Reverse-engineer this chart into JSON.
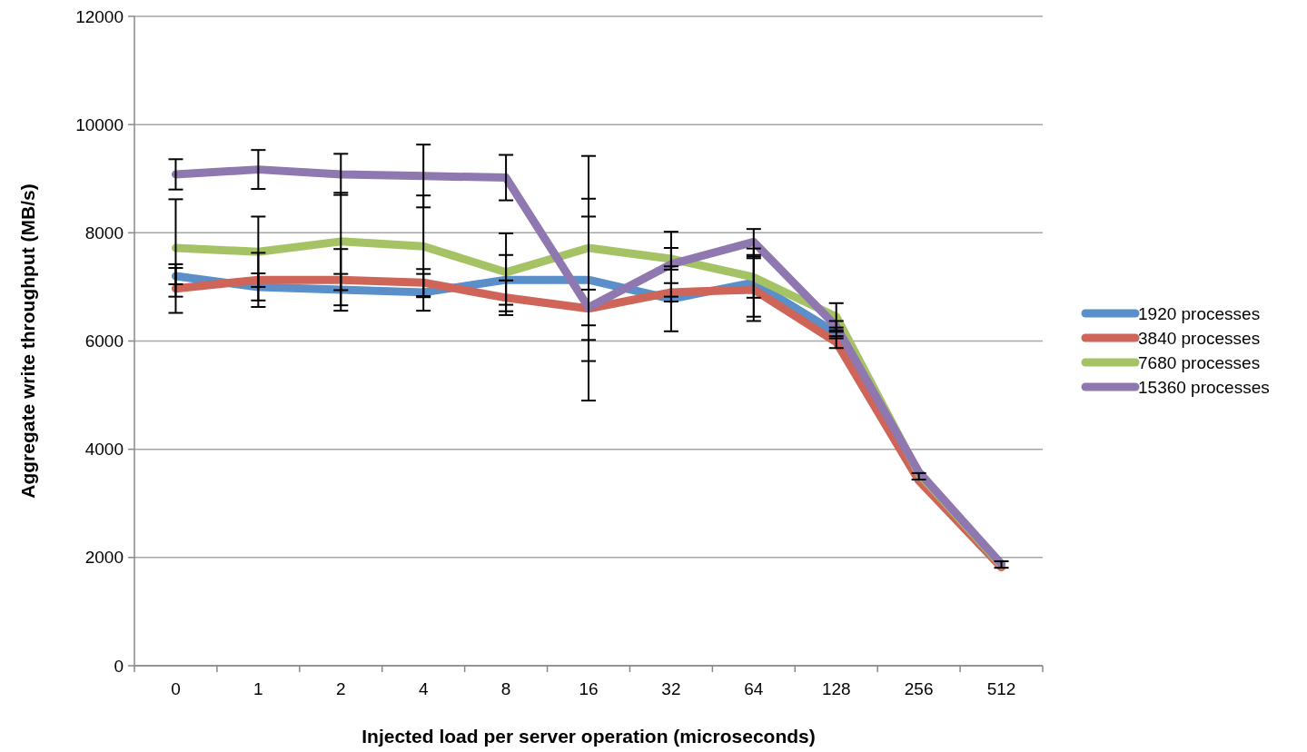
{
  "chart_data": {
    "type": "line",
    "xlabel": "Injected load per server operation (microseconds)",
    "ylabel": "Aggregate write throughput (MB/s)",
    "categories": [
      "0",
      "1",
      "2",
      "4",
      "8",
      "16",
      "32",
      "64",
      "128",
      "256",
      "512"
    ],
    "ylim": [
      0,
      12000
    ],
    "yticks": [
      0,
      2000,
      4000,
      6000,
      8000,
      10000,
      12000
    ],
    "grid": "y",
    "legend": "right",
    "marker": "none",
    "line_style": "solid",
    "series": [
      {
        "name": "1920 processes",
        "color": "#5b8fc9",
        "values": [
          7200,
          7000,
          6950,
          6900,
          7130,
          7130,
          6780,
          7080,
          6150,
          3500,
          1870
        ],
        "errors": [
          150,
          250,
          290,
          340,
          460,
          1500,
          600,
          630,
          100,
          60,
          60
        ]
      },
      {
        "name": "3840 processes",
        "color": "#cf6559",
        "values": [
          6970,
          7130,
          7130,
          7080,
          6800,
          6600,
          6900,
          6950,
          5980,
          3420,
          1820
        ],
        "errors": [
          450,
          500,
          570,
          250,
          320,
          1700,
          170,
          580,
          110,
          null,
          null
        ]
      },
      {
        "name": "7680 processes",
        "color": "#a5c364",
        "values": [
          7720,
          7650,
          7840,
          7750,
          7270,
          7720,
          7520,
          7180,
          6450,
          3550,
          1860
        ],
        "errors": [
          900,
          650,
          900,
          940,
          720,
          1700,
          200,
          380,
          250,
          null,
          null
        ]
      },
      {
        "name": "15360 processes",
        "color": "#8f78b0",
        "values": [
          9080,
          9170,
          9080,
          9050,
          9020,
          6620,
          7420,
          7830,
          6270,
          3580,
          1880
        ],
        "errors": [
          280,
          360,
          380,
          580,
          420,
          330,
          600,
          240,
          100,
          null,
          null
        ]
      }
    ]
  }
}
